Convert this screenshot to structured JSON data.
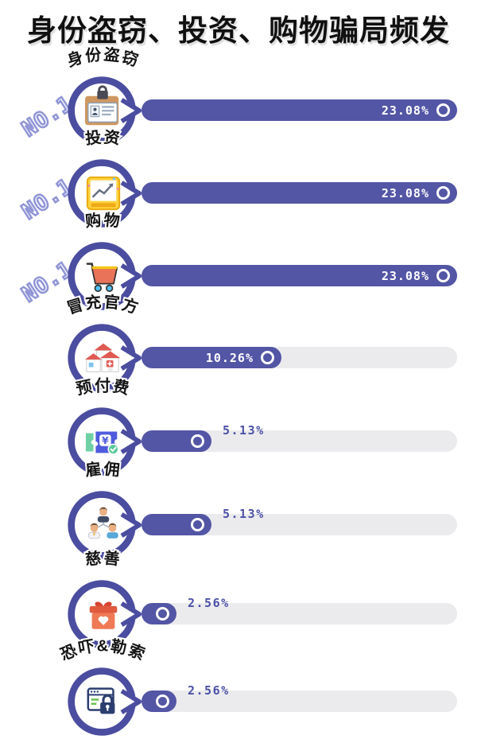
{
  "title": "身份盗窃、投资、购物骗局频发",
  "chart_data": {
    "type": "bar",
    "orientation": "horizontal",
    "title": "身份盗窃、投资、购物骗局频发",
    "xlim": [
      0,
      23.08
    ],
    "unit": "%",
    "grid": false,
    "legend": "none",
    "colors": {
      "bar": "#5355a5",
      "track": "#ebebee",
      "bubble_ring": "#4b4da0",
      "value_outside_text": "#4c51a6",
      "rank_outline": "#9095d6",
      "title_text": "#101010"
    },
    "categories": [
      "身份盗窃",
      "投资",
      "购物",
      "冒充官方",
      "预付费",
      "雇佣",
      "慈善",
      "恐吓&勒索"
    ],
    "values": [
      23.08,
      23.08,
      23.08,
      10.26,
      5.13,
      5.13,
      2.56,
      2.56
    ],
    "rows": [
      {
        "label": "身份盗窃",
        "rank": "NO.1",
        "value": 23.08,
        "value_label": "23.08%",
        "icon": "id-card-lock-icon"
      },
      {
        "label": "投资",
        "rank": "NO.1",
        "value": 23.08,
        "value_label": "23.08%",
        "icon": "trend-chart-icon"
      },
      {
        "label": "购物",
        "rank": "NO.1",
        "value": 23.08,
        "value_label": "23.08%",
        "icon": "shopping-cart-icon"
      },
      {
        "label": "冒充官方",
        "rank": "",
        "value": 10.26,
        "value_label": "10.26%",
        "icon": "official-building-icon"
      },
      {
        "label": "预付费",
        "rank": "",
        "value": 5.13,
        "value_label": "5.13%",
        "icon": "prepaid-voucher-icon"
      },
      {
        "label": "雇佣",
        "rank": "",
        "value": 5.13,
        "value_label": "5.13%",
        "icon": "employment-people-icon"
      },
      {
        "label": "慈善",
        "rank": "",
        "value": 2.56,
        "value_label": "2.56%",
        "icon": "charity-gift-icon"
      },
      {
        "label": "恐吓&勒索",
        "rank": "",
        "value": 2.56,
        "value_label": "2.56%",
        "icon": "browser-lock-icon"
      }
    ]
  }
}
